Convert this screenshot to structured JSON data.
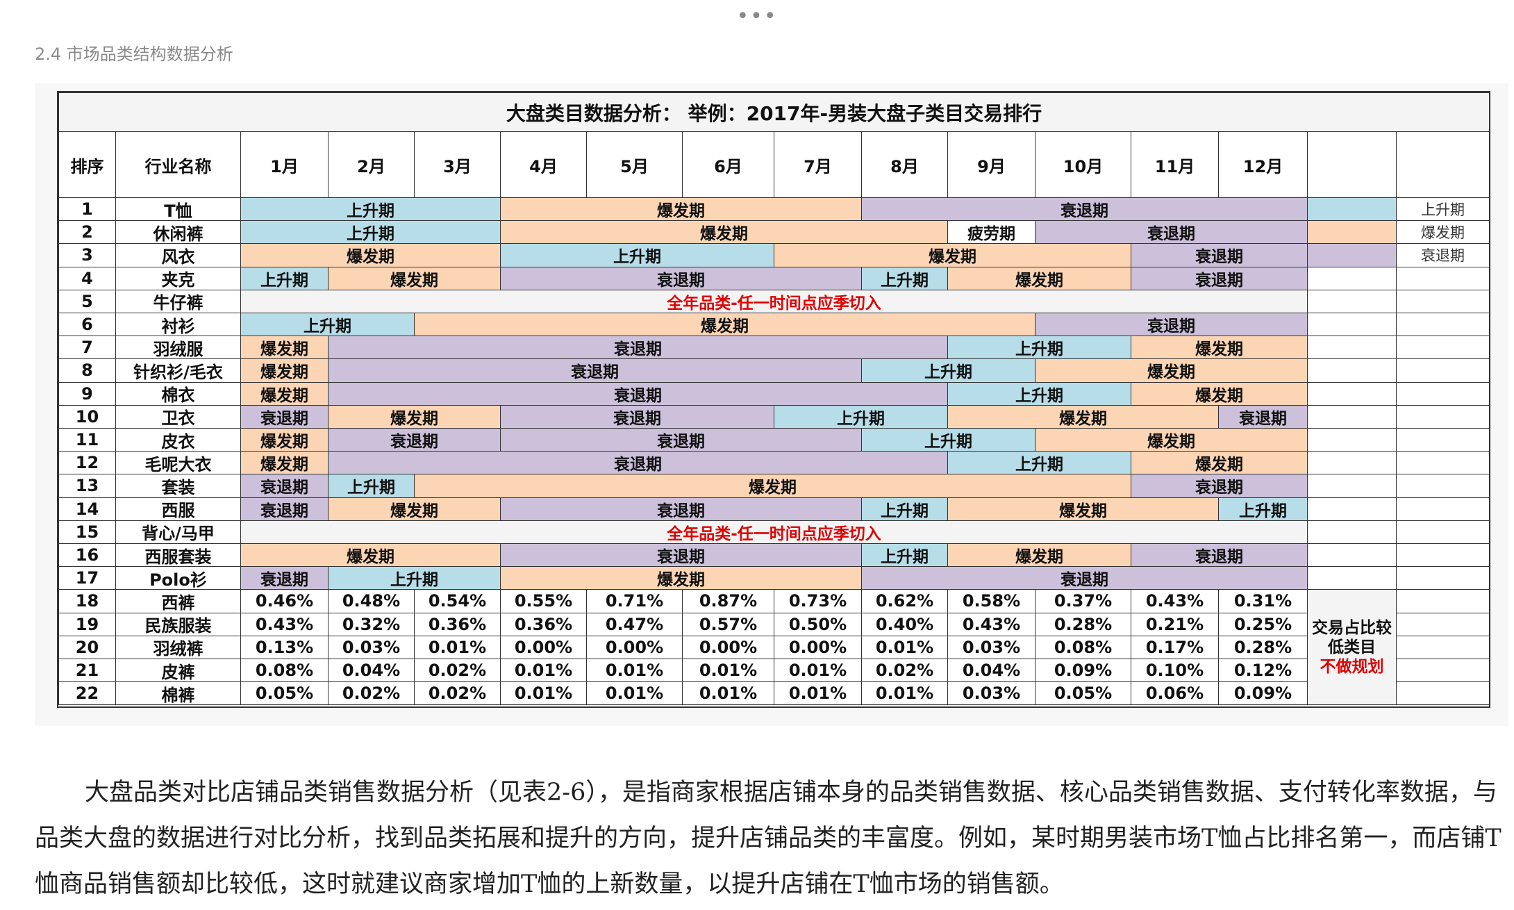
{
  "section_caption": "2.4 市场品类结构数据分析",
  "table": {
    "title": "大盘类目数据分析：  举例：2017年-男装大盘子类目交易排行",
    "headers": {
      "rank": "排序",
      "name": "行业名称",
      "months": [
        "1月",
        "2月",
        "3月",
        "4月",
        "5月",
        "6月",
        "7月",
        "8月",
        "9月",
        "10月",
        "11月",
        "12月"
      ]
    },
    "colors": {
      "上升期": "#b7dde8",
      "爆发期": "#fcd5b4",
      "衰退期": "#ccc0da",
      "all_year_text": "#e00000"
    },
    "legend": [
      "上升期",
      "爆发期",
      "衰退期"
    ],
    "season_rows": [
      {
        "rank": "1",
        "name": "T恤",
        "segments": [
          [
            1,
            3,
            "上升期"
          ],
          [
            4,
            7,
            "爆发期"
          ],
          [
            8,
            12,
            "衰退期"
          ]
        ]
      },
      {
        "rank": "2",
        "name": "休闲裤",
        "segments": [
          [
            1,
            3,
            "上升期"
          ],
          [
            4,
            8,
            "爆发期"
          ],
          [
            9,
            9,
            "疲劳期"
          ],
          [
            10,
            12,
            "衰退期"
          ]
        ]
      },
      {
        "rank": "3",
        "name": "风衣",
        "segments": [
          [
            1,
            3,
            "爆发期"
          ],
          [
            4,
            6,
            "上升期"
          ],
          [
            7,
            10,
            "爆发期"
          ],
          [
            11,
            12,
            "衰退期"
          ]
        ]
      },
      {
        "rank": "4",
        "name": "夹克",
        "segments": [
          [
            1,
            1,
            "上升期"
          ],
          [
            2,
            3,
            "爆发期"
          ],
          [
            4,
            7,
            "衰退期"
          ],
          [
            8,
            8,
            "上升期"
          ],
          [
            9,
            10,
            "爆发期"
          ],
          [
            11,
            12,
            "衰退期"
          ]
        ]
      },
      {
        "rank": "5",
        "name": "牛仔裤",
        "all_year": "全年品类-任一时间点应季切入"
      },
      {
        "rank": "6",
        "name": "衬衫",
        "segments": [
          [
            1,
            2,
            "上升期"
          ],
          [
            3,
            9,
            "爆发期"
          ],
          [
            10,
            12,
            "衰退期"
          ]
        ]
      },
      {
        "rank": "7",
        "name": "羽绒服",
        "segments": [
          [
            1,
            1,
            "爆发期"
          ],
          [
            2,
            8,
            "衰退期"
          ],
          [
            9,
            10,
            "上升期"
          ],
          [
            11,
            12,
            "爆发期"
          ]
        ]
      },
      {
        "rank": "8",
        "name": "针织衫/毛衣",
        "segments": [
          [
            1,
            1,
            "爆发期"
          ],
          [
            2,
            7,
            "衰退期"
          ],
          [
            8,
            9,
            "上升期"
          ],
          [
            10,
            12,
            "爆发期"
          ]
        ]
      },
      {
        "rank": "9",
        "name": "棉衣",
        "segments": [
          [
            1,
            1,
            "爆发期"
          ],
          [
            2,
            8,
            "衰退期"
          ],
          [
            9,
            10,
            "上升期"
          ],
          [
            11,
            12,
            "爆发期"
          ]
        ]
      },
      {
        "rank": "10",
        "name": "卫衣",
        "segments": [
          [
            1,
            1,
            "衰退期"
          ],
          [
            2,
            3,
            "爆发期"
          ],
          [
            4,
            6,
            "衰退期"
          ],
          [
            7,
            8,
            "上升期"
          ],
          [
            9,
            11,
            "爆发期"
          ],
          [
            12,
            12,
            "衰退期"
          ]
        ]
      },
      {
        "rank": "11",
        "name": "皮衣",
        "segments": [
          [
            1,
            1,
            "爆发期"
          ],
          [
            2,
            3,
            "衰退期"
          ],
          [
            4,
            7,
            "衰退期"
          ],
          [
            8,
            9,
            "上升期"
          ],
          [
            10,
            12,
            "爆发期"
          ]
        ]
      },
      {
        "rank": "12",
        "name": "毛呢大衣",
        "segments": [
          [
            1,
            1,
            "爆发期"
          ],
          [
            2,
            8,
            "衰退期"
          ],
          [
            9,
            10,
            "上升期"
          ],
          [
            11,
            12,
            "爆发期"
          ]
        ]
      },
      {
        "rank": "13",
        "name": "套装",
        "segments": [
          [
            1,
            1,
            "衰退期"
          ],
          [
            2,
            2,
            "上升期"
          ],
          [
            3,
            10,
            "爆发期"
          ],
          [
            11,
            12,
            "衰退期"
          ]
        ]
      },
      {
        "rank": "14",
        "name": "西服",
        "segments": [
          [
            1,
            1,
            "衰退期"
          ],
          [
            2,
            3,
            "爆发期"
          ],
          [
            4,
            7,
            "衰退期"
          ],
          [
            8,
            8,
            "上升期"
          ],
          [
            9,
            11,
            "爆发期"
          ],
          [
            12,
            12,
            "上升期"
          ]
        ]
      },
      {
        "rank": "15",
        "name": "背心/马甲",
        "all_year": "全年品类-任一时间点应季切入"
      },
      {
        "rank": "16",
        "name": "西服套装",
        "segments": [
          [
            1,
            3,
            "爆发期"
          ],
          [
            4,
            7,
            "衰退期"
          ],
          [
            8,
            8,
            "上升期"
          ],
          [
            9,
            10,
            "爆发期"
          ],
          [
            11,
            12,
            "衰退期"
          ]
        ]
      },
      {
        "rank": "17",
        "name": "Polo衫",
        "segments": [
          [
            1,
            1,
            "衰退期"
          ],
          [
            2,
            3,
            "上升期"
          ],
          [
            4,
            7,
            "爆发期"
          ],
          [
            8,
            12,
            "衰退期"
          ]
        ]
      }
    ],
    "share_rows": [
      {
        "rank": "18",
        "name": "西裤",
        "values": [
          "0.46%",
          "0.48%",
          "0.54%",
          "0.55%",
          "0.71%",
          "0.87%",
          "0.73%",
          "0.62%",
          "0.58%",
          "0.37%",
          "0.43%",
          "0.31%"
        ]
      },
      {
        "rank": "19",
        "name": "民族服装",
        "values": [
          "0.43%",
          "0.32%",
          "0.36%",
          "0.36%",
          "0.47%",
          "0.57%",
          "0.50%",
          "0.40%",
          "0.43%",
          "0.28%",
          "0.21%",
          "0.25%"
        ]
      },
      {
        "rank": "20",
        "name": "羽绒裤",
        "values": [
          "0.13%",
          "0.03%",
          "0.01%",
          "0.00%",
          "0.00%",
          "0.00%",
          "0.00%",
          "0.01%",
          "0.03%",
          "0.08%",
          "0.17%",
          "0.28%"
        ]
      },
      {
        "rank": "21",
        "name": "皮裤",
        "values": [
          "0.08%",
          "0.04%",
          "0.02%",
          "0.01%",
          "0.01%",
          "0.01%",
          "0.01%",
          "0.02%",
          "0.04%",
          "0.09%",
          "0.10%",
          "0.12%"
        ]
      },
      {
        "rank": "22",
        "name": "棉裤",
        "values": [
          "0.05%",
          "0.02%",
          "0.02%",
          "0.01%",
          "0.01%",
          "0.01%",
          "0.01%",
          "0.01%",
          "0.03%",
          "0.05%",
          "0.06%",
          "0.09%"
        ]
      }
    ],
    "low_share_note": {
      "line1": "交易占比较",
      "line2": "低类目",
      "line3": "不做规划"
    }
  },
  "body_paragraph": "大盘品类对比店铺品类销售数据分析（见表2-6），是指商家根据店铺本身的品类销售数据、核心品类销售数据、支付转化率数据，与品类大盘的数据进行对比分析，找到品类拓展和提升的方向，提升店铺品类的丰富度。例如，某时期男装市场T恤占比排名第一，而店铺T恤商品销售额却比较低，这时就建议商家增加T恤的上新数量，以提升店铺在T恤市场的销售额。"
}
